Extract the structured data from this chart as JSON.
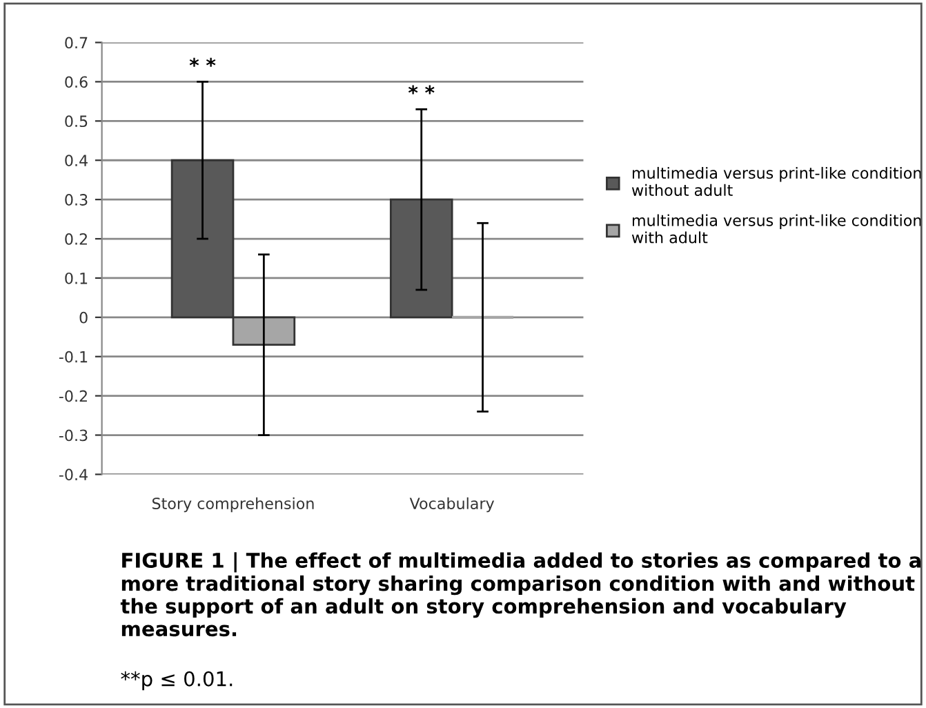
{
  "chart_data": {
    "type": "bar",
    "title": "FIGURE 1 | The effect of multimedia added to stories as compared to a more traditional story sharing comparison condition with and without the support of an adult on story comprehension and vocabulary measures.",
    "categories": [
      "Story comprehension",
      "Vocabulary"
    ],
    "series": [
      {
        "name": "multimedia versus print-like condition without adult",
        "color": "#595959",
        "values": [
          0.4,
          0.3
        ],
        "errors": [
          0.2,
          0.23
        ]
      },
      {
        "name": "multimedia versus print-like condition with adult",
        "color": "#a6a6a6",
        "values": [
          -0.07,
          0
        ],
        "errors": [
          0.23,
          0.24
        ]
      }
    ],
    "annotations": [
      "* *",
      "* *",
      "**p ≤ 0.01."
    ],
    "ylim": [
      -0.4,
      0.7
    ],
    "yticks": [
      -0.4,
      -0.3,
      -0.2,
      -0.1,
      0,
      0.1,
      0.2,
      0.3,
      0.4,
      0.5,
      0.6,
      0.7
    ],
    "grid": "y",
    "legend": "right"
  }
}
